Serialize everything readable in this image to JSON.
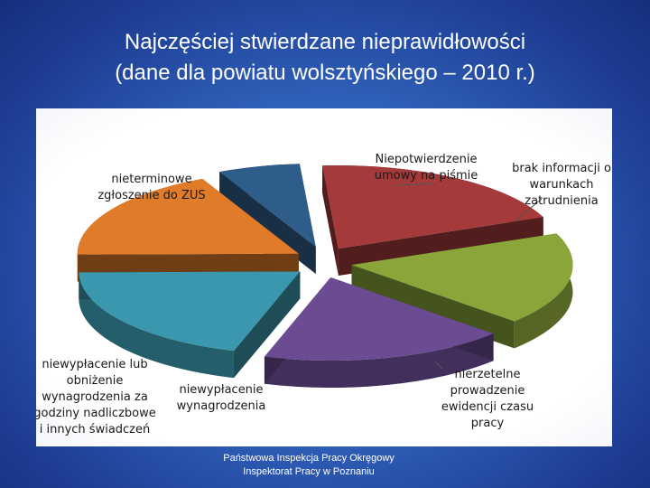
{
  "slide": {
    "title_line1": "Najczęściej stwierdzane nieprawidłowości",
    "title_line2": "(dane dla powiatu wolsztyńskiego – 2010 r.)",
    "footer_line1": "Państwowa Inspekcja Pracy Okręgowy",
    "footer_line2": "Inspektorat Pracy w Poznaniu"
  },
  "chart_data": {
    "type": "pie",
    "style": "3d-exploded",
    "title": "",
    "legend": "none",
    "slices": [
      {
        "label": [
          "Niepotwierdzenie",
          "umowy na piśmie"
        ],
        "value": 6,
        "color": "#2f5d8a"
      },
      {
        "label": [
          "brak informacji o",
          "warunkach",
          "zatrudnienia"
        ],
        "value": 20,
        "color": "#a43a3a"
      },
      {
        "label": [
          "nierzetelne",
          "prowadzenie",
          "ewidencji czasu",
          "pracy"
        ],
        "value": 18,
        "color": "#8aa53a"
      },
      {
        "label": [
          "niewypłacenie",
          "wynagrodzenia"
        ],
        "value": 18,
        "color": "#6b4c93"
      },
      {
        "label": [
          "niewypłacenie lub",
          "obniżenie",
          "wynagrodzenia za",
          "godziny nadliczbowe",
          "i innych świadczeń"
        ],
        "value": 20,
        "color": "#3b97ad"
      },
      {
        "label": [
          "nieterminowe",
          "zgłoszenie do ZUS"
        ],
        "value": 18,
        "color": "#e07b2a"
      }
    ]
  }
}
